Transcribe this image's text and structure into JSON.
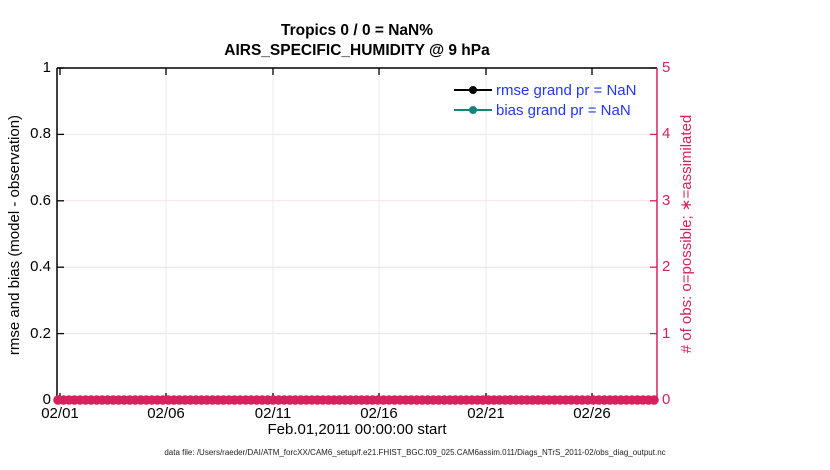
{
  "title": {
    "line1": "Tropics 0 / 0 = NaN%",
    "line2": "AIRS_SPECIFIC_HUMIDITY @ 9 hPa"
  },
  "axes": {
    "left": {
      "label": "rmse and bias (model - observation)",
      "ticks": [
        "0",
        "0.2",
        "0.4",
        "0.6",
        "0.8",
        "1"
      ]
    },
    "right": {
      "label": "# of obs: o=possible; ∗=assimilated",
      "ticks": [
        "0",
        "1",
        "2",
        "3",
        "4",
        "5"
      ]
    },
    "x": {
      "label": "Feb.01,2011 00:00:00 start",
      "ticks": [
        "02/01",
        "02/06",
        "02/11",
        "02/16",
        "02/21",
        "02/26"
      ]
    }
  },
  "legend": [
    {
      "label": "rmse grand pr = NaN",
      "color": "#000000"
    },
    {
      "label": "bias grand pr = NaN",
      "color": "#15837a"
    }
  ],
  "footer": "data file: /Users/raeder/DAI/ATM_forcXX/CAM6_setup/f.e21.FHIST_BGC.f09_025.CAM6assim.011/Diags_NTrS_2011-02/obs_diag_output.nc",
  "colors": {
    "obs_pink": "#d9205e",
    "bias_teal": "#15837a",
    "legend_blue": "#2337ee",
    "grid_horizontal": "#f9dfe9",
    "grid_vertical": "#ebebeb",
    "axis_black": "#000000"
  },
  "chart_data": {
    "type": "line",
    "title": "Tropics 0 / 0 = NaN%",
    "subtitle": "AIRS_SPECIFIC_HUMIDITY @ 9 hPa",
    "xlabel": "Feb.01,2011 00:00:00 start",
    "ylabel_left": "rmse and bias (model - observation)",
    "ylabel_right": "# of obs: o=possible; ∗=assimilated",
    "x_tick_labels": [
      "02/01",
      "02/06",
      "02/11",
      "02/16",
      "02/21",
      "02/26"
    ],
    "x_range_days": [
      0,
      28.6
    ],
    "ylim_left": [
      0,
      1
    ],
    "ylim_right": [
      0,
      5
    ],
    "grid": true,
    "legend_position": "top-right-inside",
    "series": [
      {
        "name": "rmse grand pr = NaN",
        "axis": "left",
        "color": "#000000",
        "marker": "filled-circle",
        "values": "all NaN (no line drawn)"
      },
      {
        "name": "bias grand pr = NaN",
        "axis": "left",
        "color": "#15837a",
        "marker": "filled-circle",
        "values": "all NaN (no line drawn)"
      },
      {
        "name": "# of obs possible (o)",
        "axis": "right",
        "color": "#d9205e",
        "marker": "o",
        "bins": 109,
        "constant_value": 0
      },
      {
        "name": "# of obs assimilated (∗)",
        "axis": "right",
        "color": "#d9205e",
        "marker": "∗",
        "bins": 109,
        "constant_value": 0
      }
    ],
    "summary_stats": {
      "possible_total": 0,
      "assimilated_total": 0,
      "percent": "NaN"
    }
  }
}
